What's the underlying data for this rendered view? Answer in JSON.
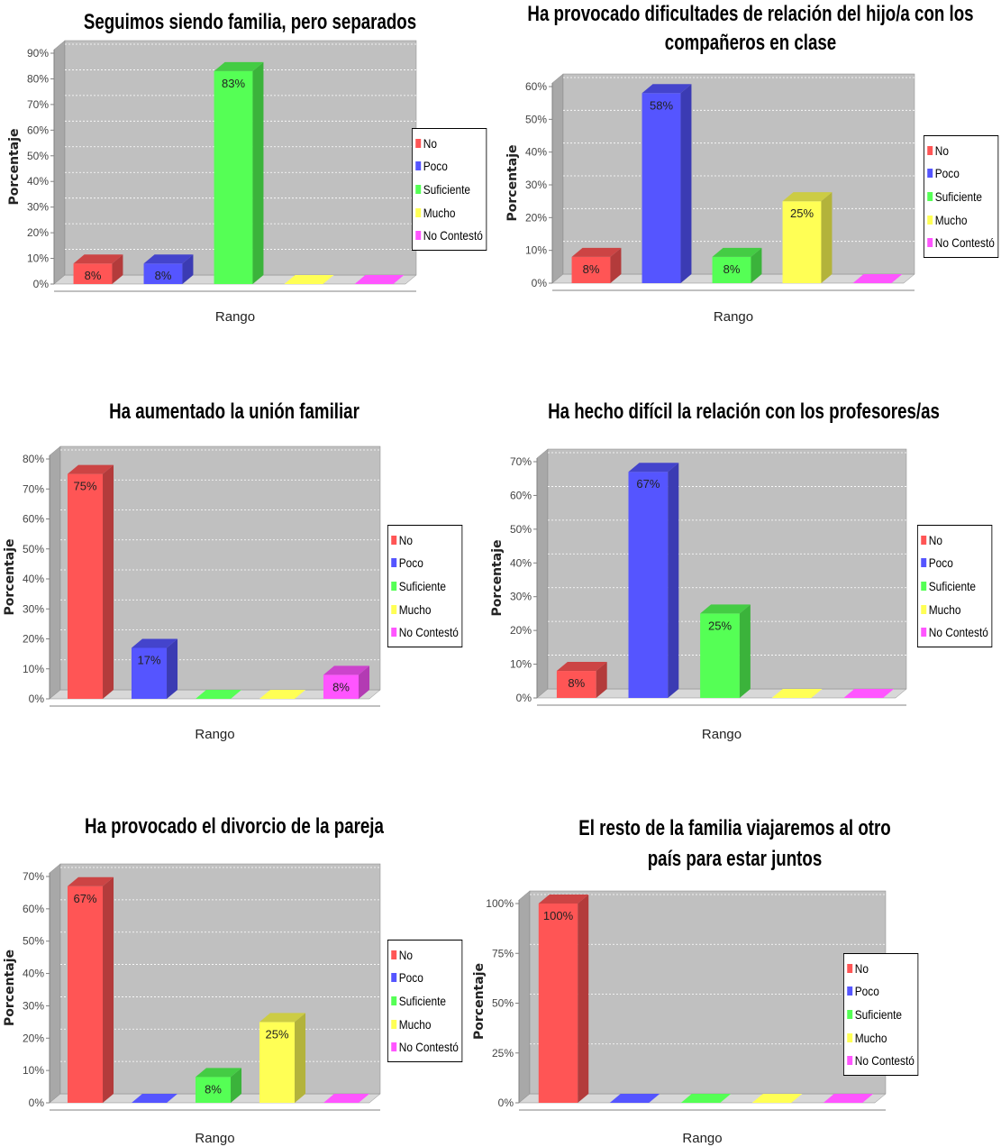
{
  "legend_labels": [
    "No",
    "Poco",
    "Suficiente",
    "Mucho",
    "No Contestó"
  ],
  "colors": {
    "No": "#ff5555",
    "Poco": "#5555ff",
    "Suficiente": "#55ff55",
    "Mucho": "#ffff55",
    "No Contestó": "#ff55ff",
    "plot_bg": "#c0c0c0"
  },
  "chart_data": [
    {
      "type": "bar",
      "title": "Seguimos siendo familia, pero separados",
      "xlabel": "Rango",
      "ylabel": "Porcentaje",
      "categories": [
        "No",
        "Poco",
        "Suficiente",
        "Mucho",
        "No Contestó"
      ],
      "values": [
        8,
        8,
        83,
        0,
        0
      ],
      "data_labels": [
        "8%",
        "8%",
        "83%",
        "",
        ""
      ],
      "ylim": [
        0,
        90
      ],
      "yticks": [
        "0%",
        "10%",
        "20%",
        "30%",
        "40%",
        "50%",
        "60%",
        "70%",
        "80%",
        "90%"
      ],
      "legend_position": "right"
    },
    {
      "type": "bar",
      "title": "Ha provocado dificultades de relación del hijo/a con los compañeros en clase",
      "xlabel": "Rango",
      "ylabel": "Porcentaje",
      "categories": [
        "No",
        "Poco",
        "Suficiente",
        "Mucho",
        "No Contestó"
      ],
      "values": [
        8,
        58,
        8,
        25,
        0
      ],
      "data_labels": [
        "8%",
        "58%",
        "8%",
        "25%",
        ""
      ],
      "ylim": [
        0,
        60
      ],
      "yticks": [
        "0%",
        "10%",
        "20%",
        "30%",
        "40%",
        "50%",
        "60%"
      ],
      "legend_position": "right"
    },
    {
      "type": "bar",
      "title": "Ha aumentado la unión familiar",
      "xlabel": "Rango",
      "ylabel": "Porcentaje",
      "categories": [
        "No",
        "Poco",
        "Suficiente",
        "Mucho",
        "No Contestó"
      ],
      "values": [
        75,
        17,
        0,
        0,
        8
      ],
      "data_labels": [
        "75%",
        "17%",
        "",
        "",
        "8%"
      ],
      "ylim": [
        0,
        80
      ],
      "yticks": [
        "0%",
        "10%",
        "20%",
        "30%",
        "40%",
        "50%",
        "60%",
        "70%",
        "80%"
      ],
      "legend_position": "right"
    },
    {
      "type": "bar",
      "title": "Ha hecho difícil la relación con los profesores/as",
      "xlabel": "Rango",
      "ylabel": "Porcentaje",
      "categories": [
        "No",
        "Poco",
        "Suficiente",
        "Mucho",
        "No Contestó"
      ],
      "values": [
        8,
        67,
        25,
        0,
        0
      ],
      "data_labels": [
        "8%",
        "67%",
        "25%",
        "",
        ""
      ],
      "ylim": [
        0,
        70
      ],
      "yticks": [
        "0%",
        "10%",
        "20%",
        "30%",
        "40%",
        "50%",
        "60%",
        "70%"
      ],
      "legend_position": "right"
    },
    {
      "type": "bar",
      "title": "Ha provocado el divorcio de la pareja",
      "xlabel": "Rango",
      "ylabel": "Porcentaje",
      "categories": [
        "No",
        "Poco",
        "Suficiente",
        "Mucho",
        "No Contestó"
      ],
      "values": [
        67,
        0,
        8,
        25,
        0
      ],
      "data_labels": [
        "67%",
        "",
        "8%",
        "25%",
        ""
      ],
      "ylim": [
        0,
        70
      ],
      "yticks": [
        "0%",
        "10%",
        "20%",
        "30%",
        "40%",
        "50%",
        "60%",
        "70%"
      ],
      "legend_position": "right"
    },
    {
      "type": "bar",
      "title": "El resto de la familia viajaremos al otro país para estar juntos",
      "xlabel": "Rango",
      "ylabel": "Porcentaje",
      "categories": [
        "No",
        "Poco",
        "Suficiente",
        "Mucho",
        "No Contestó"
      ],
      "values": [
        100,
        0,
        0,
        0,
        0
      ],
      "data_labels": [
        "100%",
        "",
        "",
        "",
        ""
      ],
      "ylim": [
        0,
        100
      ],
      "yticks": [
        "0%",
        "25%",
        "50%",
        "75%",
        "100%"
      ],
      "legend_position": "right"
    }
  ]
}
